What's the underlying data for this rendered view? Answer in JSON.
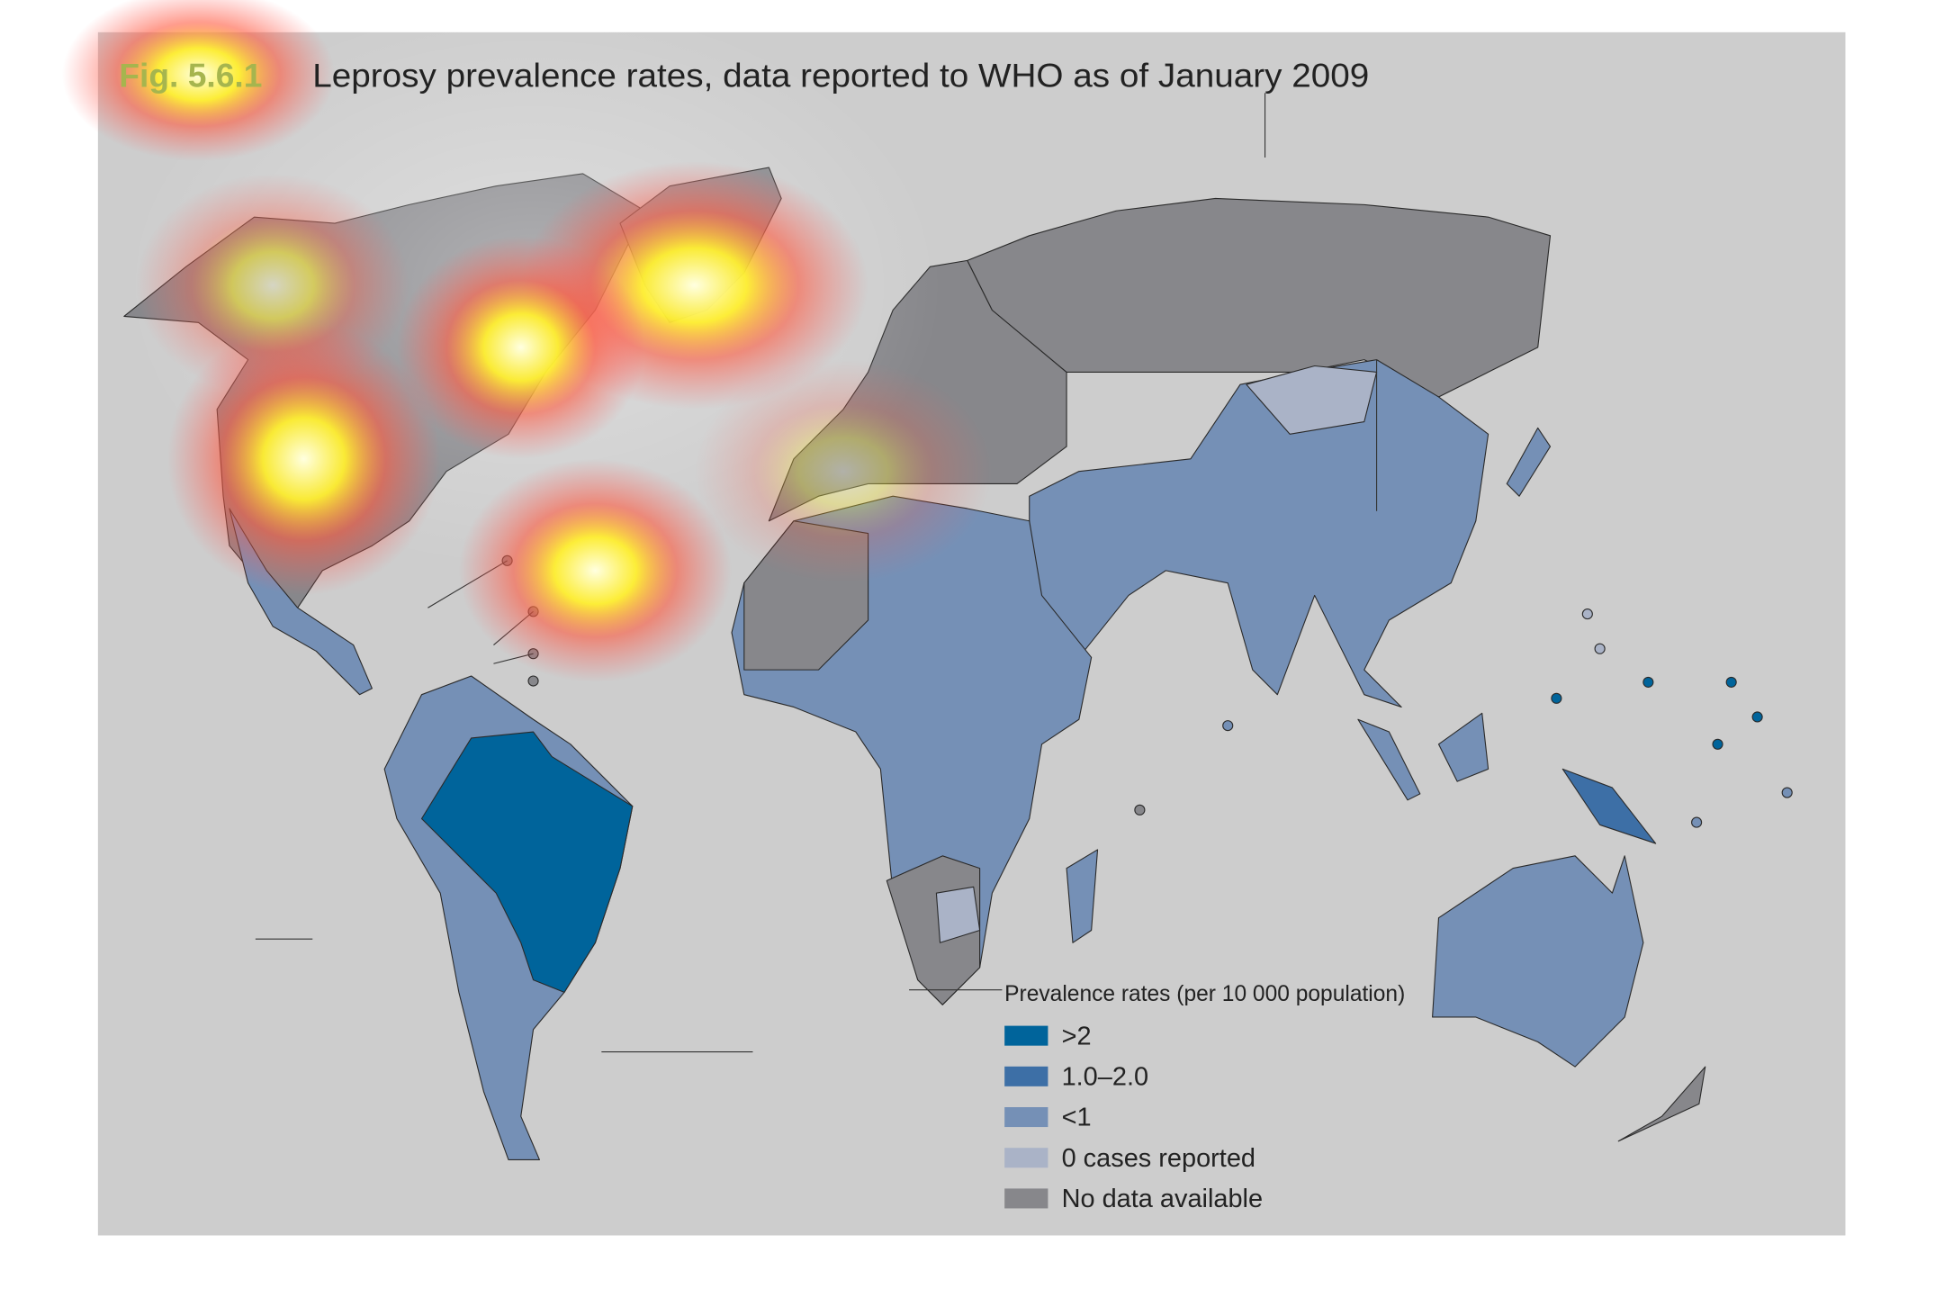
{
  "header": {
    "figure_number": "Fig. 5.6.1",
    "title": "Leprosy prevalence rates, data reported to WHO as of January 2009"
  },
  "legend": {
    "title": "Prevalence rates (per 10 000 population)",
    "items": [
      {
        "label": ">2",
        "color": "#00649b"
      },
      {
        "label": "1.0–2.0",
        "color": "#3d6fa6"
      },
      {
        "label": "<1",
        "color": "#7590b6"
      },
      {
        "label": "0 cases reported",
        "color": "#aab3c7"
      },
      {
        "label": "No data available",
        "color": "#87878b"
      }
    ]
  }
}
